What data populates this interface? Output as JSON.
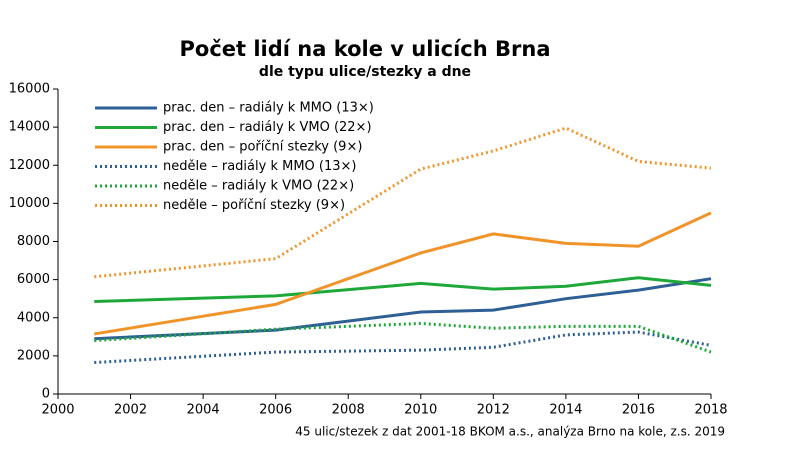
{
  "chart_data": {
    "type": "line",
    "title": "Počet lidí na kole v ulicích Brna",
    "subtitle": "dle typu ulice/stezky a dne",
    "footnote": "45 ulic/stezek z dat 2001-18 BKOM a.s., analýza Brno na kole, z.s. 2019",
    "x": [
      2001,
      2006,
      2010,
      2012,
      2014,
      2016,
      2018
    ],
    "series": [
      {
        "name": "prac. den – radiály k MMO (13×)",
        "color": "#2e5f95",
        "linestyle": "solid",
        "values": [
          2900,
          3350,
          4300,
          4400,
          5000,
          5450,
          6050
        ]
      },
      {
        "name": "prac. den – radiály k VMO (22×)",
        "color": "#1fa83a",
        "linestyle": "solid",
        "values": [
          4850,
          5150,
          5800,
          5500,
          5650,
          6100,
          5700
        ]
      },
      {
        "name": "prac. den – poříční stezky (9×)",
        "color": "#f0942a",
        "linestyle": "solid",
        "values": [
          3150,
          4700,
          7400,
          8400,
          7900,
          7750,
          9500
        ]
      },
      {
        "name": "neděle – radiály k MMO (13×)",
        "color": "#2e5f95",
        "linestyle": "dotted",
        "values": [
          1650,
          2200,
          2300,
          2450,
          3100,
          3250,
          2550
        ]
      },
      {
        "name": "neděle – radiály k VMO (22×)",
        "color": "#1fa83a",
        "linestyle": "dotted",
        "values": [
          2800,
          3400,
          3700,
          3450,
          3550,
          3550,
          2200
        ]
      },
      {
        "name": "neděle – poříční stezky (9×)",
        "color": "#f0942a",
        "linestyle": "dotted",
        "values": [
          6150,
          7100,
          11800,
          12750,
          13950,
          12200,
          11850
        ]
      }
    ],
    "xlim": [
      2000,
      2018
    ],
    "xticks": [
      2000,
      2002,
      2004,
      2006,
      2008,
      2010,
      2012,
      2014,
      2016,
      2018
    ],
    "ylim": [
      0,
      16000
    ],
    "yticks": [
      0,
      2000,
      4000,
      6000,
      8000,
      10000,
      12000,
      14000,
      16000
    ],
    "grid": false,
    "legend": "upper left"
  }
}
